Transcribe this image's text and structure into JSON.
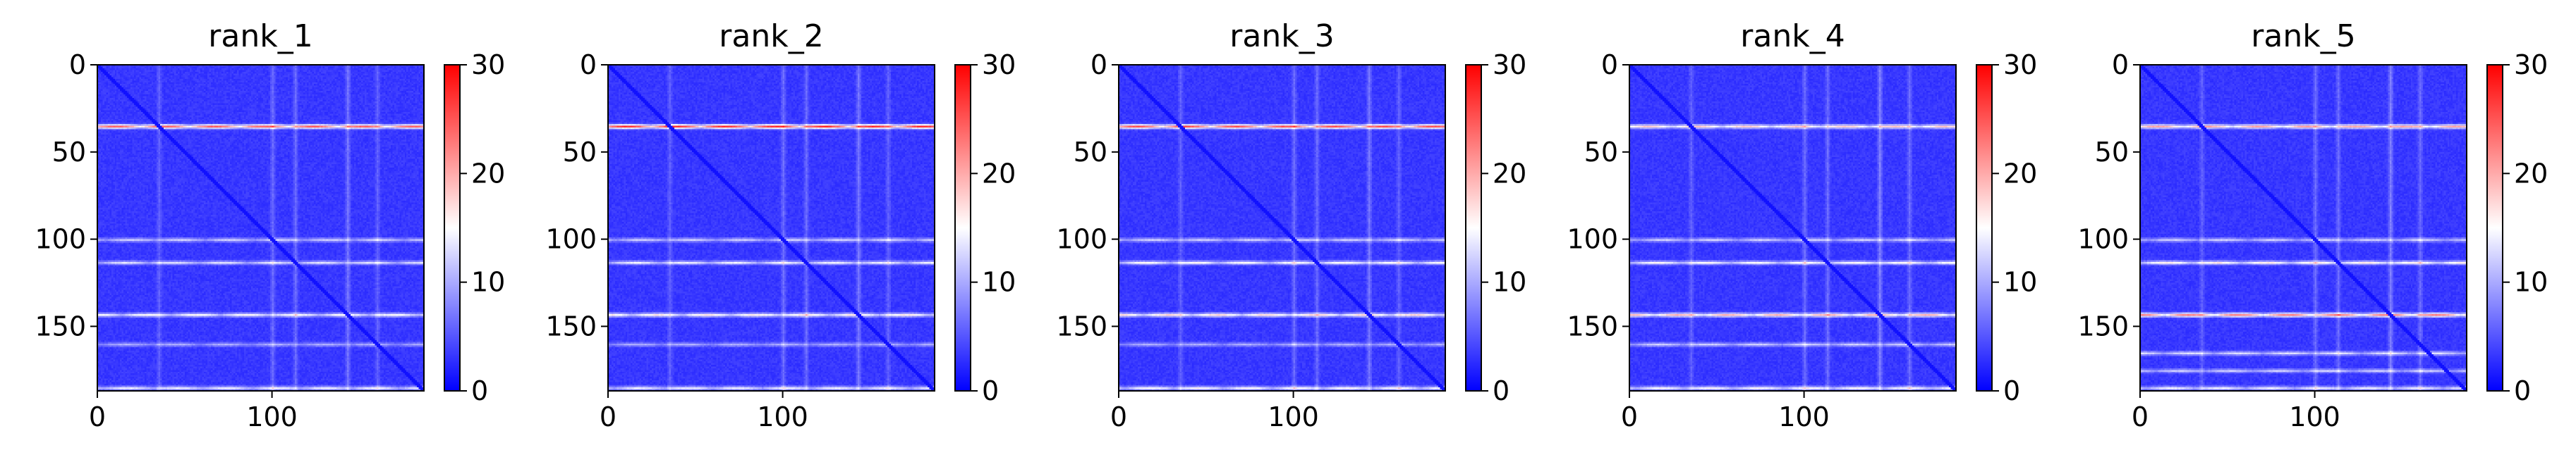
{
  "colors": {
    "colormap": [
      "#0000ff",
      "#ffffff",
      "#ff0000"
    ],
    "background": "#ffffff",
    "axis": "#000000"
  },
  "chart_data": [
    {
      "type": "heatmap",
      "title": "rank_1",
      "xlabel": "",
      "ylabel": "",
      "size": 187,
      "x_ticks": [
        "0",
        "100"
      ],
      "y_ticks": [
        "0",
        "50",
        "100",
        "150"
      ],
      "colorbar": {
        "range": [
          0,
          30
        ],
        "ticks": [
          "0",
          "10",
          "20",
          "30"
        ],
        "colormap": "bwr"
      },
      "features": {
        "diagonal_line": true,
        "horizontal_bands": [
          {
            "row": 35,
            "intensity": 24
          },
          {
            "row": 100,
            "intensity": 12
          },
          {
            "row": 113,
            "intensity": 13
          },
          {
            "row": 143,
            "intensity": 15
          },
          {
            "row": 160,
            "intensity": 10
          },
          {
            "row": 185,
            "intensity": 14
          }
        ],
        "vertical_bands": [
          {
            "col": 35,
            "intensity": 8
          },
          {
            "col": 100,
            "intensity": 9
          },
          {
            "col": 113,
            "intensity": 9
          },
          {
            "col": 143,
            "intensity": 10
          },
          {
            "col": 160,
            "intensity": 8
          }
        ]
      }
    },
    {
      "type": "heatmap",
      "title": "rank_2",
      "xlabel": "",
      "ylabel": "",
      "size": 187,
      "x_ticks": [
        "0",
        "100"
      ],
      "y_ticks": [
        "0",
        "50",
        "100",
        "150"
      ],
      "colorbar": {
        "range": [
          0,
          30
        ],
        "ticks": [
          "0",
          "10",
          "20",
          "30"
        ],
        "colormap": "bwr"
      },
      "features": {
        "diagonal_line": true,
        "horizontal_bands": [
          {
            "row": 35,
            "intensity": 27
          },
          {
            "row": 100,
            "intensity": 12
          },
          {
            "row": 113,
            "intensity": 14
          },
          {
            "row": 143,
            "intensity": 16
          },
          {
            "row": 160,
            "intensity": 10
          },
          {
            "row": 185,
            "intensity": 14
          }
        ],
        "vertical_bands": [
          {
            "col": 35,
            "intensity": 8
          },
          {
            "col": 100,
            "intensity": 9
          },
          {
            "col": 113,
            "intensity": 9
          },
          {
            "col": 143,
            "intensity": 10
          },
          {
            "col": 160,
            "intensity": 8
          }
        ]
      }
    },
    {
      "type": "heatmap",
      "title": "rank_3",
      "xlabel": "",
      "ylabel": "",
      "size": 187,
      "x_ticks": [
        "0",
        "100"
      ],
      "y_ticks": [
        "0",
        "50",
        "100",
        "150"
      ],
      "colorbar": {
        "range": [
          0,
          30
        ],
        "ticks": [
          "0",
          "10",
          "20",
          "30"
        ],
        "colormap": "bwr"
      },
      "features": {
        "diagonal_line": true,
        "horizontal_bands": [
          {
            "row": 35,
            "intensity": 25
          },
          {
            "row": 100,
            "intensity": 12
          },
          {
            "row": 113,
            "intensity": 15
          },
          {
            "row": 143,
            "intensity": 17
          },
          {
            "row": 160,
            "intensity": 10
          },
          {
            "row": 185,
            "intensity": 15
          }
        ],
        "vertical_bands": [
          {
            "col": 35,
            "intensity": 8
          },
          {
            "col": 100,
            "intensity": 9
          },
          {
            "col": 113,
            "intensity": 9
          },
          {
            "col": 143,
            "intensity": 10
          },
          {
            "col": 160,
            "intensity": 8
          }
        ]
      }
    },
    {
      "type": "heatmap",
      "title": "rank_4",
      "xlabel": "",
      "ylabel": "",
      "size": 187,
      "x_ticks": [
        "0",
        "100"
      ],
      "y_ticks": [
        "0",
        "50",
        "100",
        "150"
      ],
      "colorbar": {
        "range": [
          0,
          30
        ],
        "ticks": [
          "0",
          "10",
          "20",
          "30"
        ],
        "colormap": "bwr"
      },
      "features": {
        "diagonal_line": true,
        "horizontal_bands": [
          {
            "row": 35,
            "intensity": 18
          },
          {
            "row": 100,
            "intensity": 12
          },
          {
            "row": 113,
            "intensity": 15
          },
          {
            "row": 143,
            "intensity": 19
          },
          {
            "row": 160,
            "intensity": 12
          },
          {
            "row": 185,
            "intensity": 15
          }
        ],
        "vertical_bands": [
          {
            "col": 35,
            "intensity": 8
          },
          {
            "col": 100,
            "intensity": 9
          },
          {
            "col": 113,
            "intensity": 9
          },
          {
            "col": 143,
            "intensity": 11
          },
          {
            "col": 160,
            "intensity": 9
          }
        ]
      }
    },
    {
      "type": "heatmap",
      "title": "rank_5",
      "xlabel": "",
      "ylabel": "",
      "size": 187,
      "x_ticks": [
        "0",
        "100"
      ],
      "y_ticks": [
        "0",
        "50",
        "100",
        "150"
      ],
      "colorbar": {
        "range": [
          0,
          30
        ],
        "ticks": [
          "0",
          "10",
          "20",
          "30"
        ],
        "colormap": "bwr"
      },
      "features": {
        "diagonal_line": true,
        "horizontal_bands": [
          {
            "row": 35,
            "intensity": 20
          },
          {
            "row": 100,
            "intensity": 12
          },
          {
            "row": 113,
            "intensity": 16
          },
          {
            "row": 143,
            "intensity": 22
          },
          {
            "row": 165,
            "intensity": 13
          },
          {
            "row": 175,
            "intensity": 12
          },
          {
            "row": 185,
            "intensity": 14
          }
        ],
        "vertical_bands": [
          {
            "col": 35,
            "intensity": 8
          },
          {
            "col": 100,
            "intensity": 9
          },
          {
            "col": 113,
            "intensity": 9
          },
          {
            "col": 143,
            "intensity": 11
          },
          {
            "col": 160,
            "intensity": 9
          }
        ]
      }
    }
  ]
}
